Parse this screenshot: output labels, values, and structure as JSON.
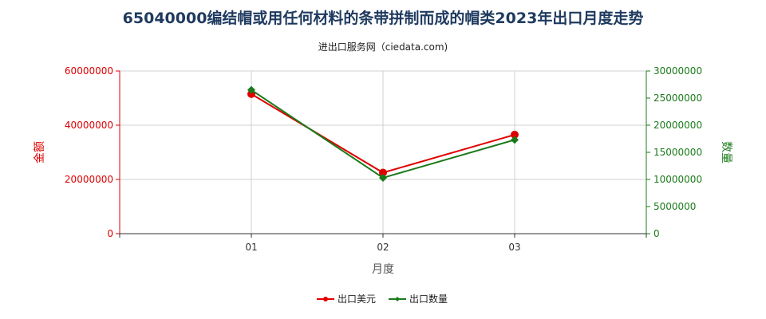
{
  "title": "65040000编结帽或用任何材料的条带拼制而成的帽类2023年出口月度走势",
  "subtitle": "进出口服务网（ciedata.com)",
  "colors": {
    "left_axis": "#e00000",
    "right_axis": "#1a7a1a",
    "export_value": "#e00000",
    "export_quantity": "#1a7a1a"
  },
  "chart_data": {
    "type": "line",
    "categories": [
      "01",
      "02",
      "03"
    ],
    "xlabel": "月度",
    "ylabel_left": "金额",
    "ylabel_right": "数量",
    "ylim_left": [
      0,
      60000000
    ],
    "ylim_right": [
      0,
      30000000
    ],
    "yticks_left": [
      "0",
      "20000000",
      "40000000",
      "60000000"
    ],
    "yticks_right": [
      "0",
      "5000000",
      "10000000",
      "15000000",
      "20000000",
      "25000000",
      "30000000"
    ],
    "grid": true,
    "legend_position": "bottom",
    "series": [
      {
        "name": "出口美元",
        "axis": "left",
        "color": "#e00000",
        "marker": "circle",
        "values": [
          51500000,
          22500000,
          36500000
        ]
      },
      {
        "name": "出口数量",
        "axis": "right",
        "color": "#1a7a1a",
        "marker": "diamond",
        "values": [
          26500000,
          10300000,
          17300000
        ]
      }
    ]
  }
}
